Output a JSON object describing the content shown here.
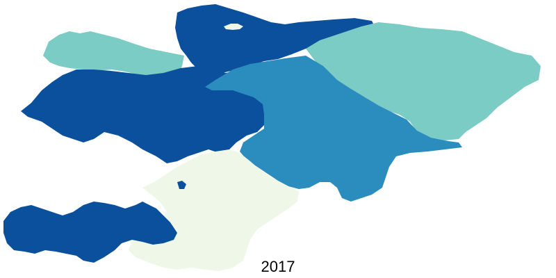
{
  "map": {
    "year_label": "2017",
    "colors": {
      "darkest": "#0a509c",
      "medium": "#2b8cbe",
      "light": "#7bccc4",
      "lightest": "#eff8e8"
    }
  }
}
